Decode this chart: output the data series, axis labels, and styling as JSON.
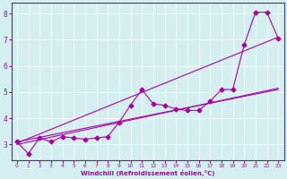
{
  "xlabel": "Windchill (Refroidissement éolien,°C)",
  "background_color": "#d4efef",
  "line_color": "#aa00aa",
  "grid_color": "#ffffff",
  "xlim": [
    -0.5,
    23.5
  ],
  "ylim": [
    2.4,
    8.4
  ],
  "yticks": [
    3,
    4,
    5,
    6,
    7,
    8
  ],
  "xticks": [
    0,
    1,
    2,
    3,
    4,
    5,
    6,
    7,
    8,
    9,
    10,
    11,
    12,
    13,
    14,
    15,
    16,
    17,
    18,
    19,
    20,
    21,
    22,
    23
  ],
  "main_line": {
    "x": [
      0,
      1,
      2,
      3,
      4,
      5,
      6,
      7,
      8,
      9,
      10,
      11,
      12,
      13,
      14,
      15,
      16,
      17,
      18,
      19,
      20,
      21,
      22,
      23
    ],
    "y": [
      3.1,
      2.65,
      3.25,
      3.1,
      3.3,
      3.25,
      3.2,
      3.25,
      3.3,
      3.85,
      4.5,
      5.1,
      4.55,
      4.5,
      4.35,
      4.3,
      4.3,
      4.65,
      5.1,
      5.1,
      6.8,
      8.05,
      8.05,
      7.05
    ]
  },
  "trend_lines": [
    {
      "x": [
        0,
        23
      ],
      "y": [
        3.05,
        7.1
      ]
    },
    {
      "x": [
        0,
        23
      ],
      "y": [
        3.0,
        5.15
      ]
    },
    {
      "x": [
        0,
        23
      ],
      "y": [
        3.1,
        5.1
      ]
    }
  ]
}
